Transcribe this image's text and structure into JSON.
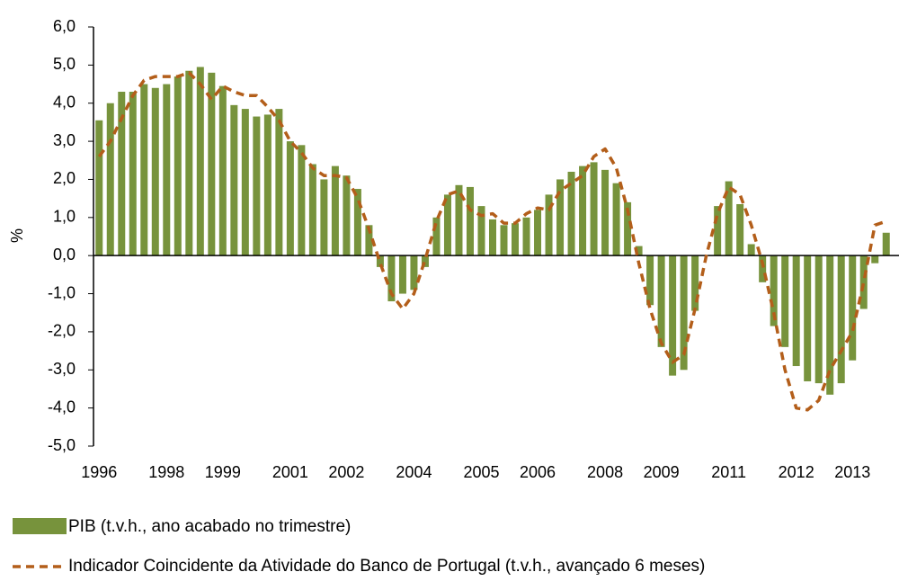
{
  "chart_data": {
    "type": "bar_line",
    "y_label": "%",
    "categories": [
      "1996",
      null,
      null,
      null,
      null,
      null,
      "1998",
      null,
      null,
      null,
      null,
      "1999",
      null,
      null,
      null,
      null,
      null,
      "2001",
      null,
      null,
      null,
      null,
      "2002",
      null,
      null,
      null,
      null,
      null,
      "2004",
      null,
      null,
      null,
      null,
      null,
      "2005",
      null,
      null,
      null,
      null,
      "2006",
      null,
      null,
      null,
      null,
      null,
      "2008",
      null,
      null,
      null,
      null,
      "2009",
      null,
      null,
      null,
      null,
      null,
      "2011",
      null,
      null,
      null,
      null,
      null,
      "2012",
      null,
      null,
      null,
      null,
      "2013",
      null,
      null,
      null
    ],
    "series": [
      {
        "name": "PIB (t.v.h., ano acabado no trimestre)",
        "type": "bar",
        "color": "#77933c",
        "values": [
          3.55,
          4.0,
          4.3,
          4.3,
          4.5,
          4.4,
          4.5,
          4.7,
          4.85,
          4.95,
          4.8,
          4.45,
          3.95,
          3.85,
          3.65,
          3.7,
          3.85,
          3.0,
          2.9,
          2.4,
          2.0,
          2.35,
          2.1,
          1.75,
          0.8,
          -0.3,
          -1.2,
          -1.0,
          -0.9,
          -0.3,
          1.0,
          1.6,
          1.85,
          1.8,
          1.3,
          0.95,
          0.8,
          0.85,
          1.0,
          1.2,
          1.6,
          2.0,
          2.2,
          2.35,
          2.45,
          2.25,
          1.9,
          1.4,
          0.25,
          -1.3,
          -2.4,
          -3.15,
          -3.0,
          -1.45,
          0.0,
          1.3,
          1.95,
          1.35,
          0.3,
          -0.7,
          -1.85,
          -2.4,
          -2.9,
          -3.3,
          -3.35,
          -3.65,
          -3.35,
          -2.75,
          -1.4,
          -0.2,
          0.6
        ]
      },
      {
        "name": "Indicador Coincidente da Atividade do Banco de Portugal (t.v.h., avançado 6 meses)",
        "type": "line",
        "color": "#b35e1a",
        "dashed": true,
        "values": [
          2.6,
          3.0,
          3.6,
          4.2,
          4.6,
          4.7,
          4.7,
          4.7,
          4.8,
          4.5,
          4.1,
          4.45,
          4.3,
          4.2,
          4.2,
          3.9,
          3.55,
          3.0,
          2.7,
          2.3,
          2.1,
          2.1,
          2.05,
          1.5,
          0.7,
          -0.2,
          -1.0,
          -1.4,
          -1.0,
          -0.1,
          0.9,
          1.6,
          1.7,
          1.2,
          1.05,
          1.1,
          0.85,
          0.85,
          1.1,
          1.25,
          1.2,
          1.7,
          1.9,
          2.1,
          2.6,
          2.8,
          2.3,
          1.2,
          -0.2,
          -1.4,
          -2.3,
          -2.8,
          -2.6,
          -1.4,
          0.0,
          1.1,
          1.8,
          1.6,
          0.8,
          -0.2,
          -1.5,
          -3.0,
          -4.0,
          -4.05,
          -3.8,
          -3.0,
          -2.5,
          -2.0,
          -0.7,
          0.8,
          0.9
        ]
      }
    ],
    "ylim": [
      -5,
      6
    ],
    "yticks": [
      {
        "value": -5,
        "label": "-5,0"
      },
      {
        "value": -4,
        "label": "-4,0"
      },
      {
        "value": -3,
        "label": "-3,0"
      },
      {
        "value": -2,
        "label": "-2,0"
      },
      {
        "value": -1,
        "label": "-1,0"
      },
      {
        "value": 0,
        "label": "0,0"
      },
      {
        "value": 1,
        "label": "1,0"
      },
      {
        "value": 2,
        "label": "2,0"
      },
      {
        "value": 3,
        "label": "3,0"
      },
      {
        "value": 4,
        "label": "4,0"
      },
      {
        "value": 5,
        "label": "5,0"
      },
      {
        "value": 6,
        "label": "6,0"
      }
    ],
    "grid": false,
    "legend": "bottom"
  }
}
